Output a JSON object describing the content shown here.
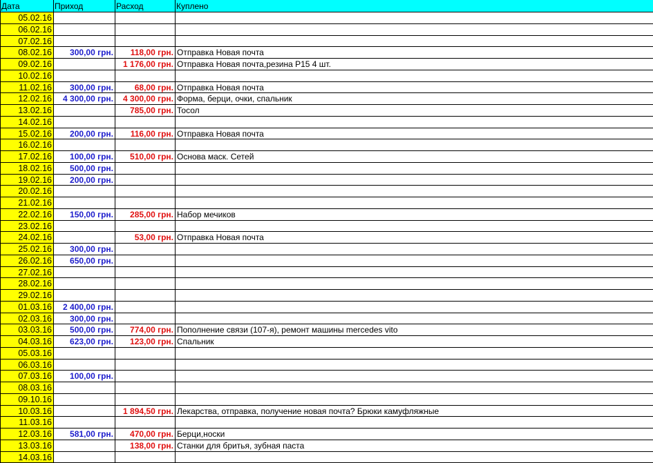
{
  "headers": [
    "Дата",
    "Приход",
    "Расход",
    "Куплено"
  ],
  "colors": {
    "header_bg": "#00ffff",
    "date_bg": "#ffff00",
    "income": "#1c1ccc",
    "expense": "#e01010"
  },
  "rows": [
    {
      "date": "05.02.16",
      "in": "",
      "out": "",
      "desc": ""
    },
    {
      "date": "06.02.16",
      "in": "",
      "out": "",
      "desc": ""
    },
    {
      "date": "07.02.16",
      "in": "",
      "out": "",
      "desc": ""
    },
    {
      "date": "08.02.16",
      "in": "300,00 грн.",
      "out": "118,00 грн.",
      "desc": "Отправка Новая почта"
    },
    {
      "date": "09.02.16",
      "in": "",
      "out": "1 176,00 грн.",
      "desc": "Отправка Новая почта,резина Р15 4 шт."
    },
    {
      "date": "10.02.16",
      "in": "",
      "out": "",
      "desc": ""
    },
    {
      "date": "11.02.16",
      "in": "300,00 грн.",
      "out": "68,00 грн.",
      "desc": "Отправка Новая почта"
    },
    {
      "date": "12.02.16",
      "in": "4 300,00 грн.",
      "out": "4 300,00 грн.",
      "desc": "Форма, берци, очки, спальник"
    },
    {
      "date": "13.02.16",
      "in": "",
      "out": "785,00 грн.",
      "desc": "Тосол"
    },
    {
      "date": "14.02.16",
      "in": "",
      "out": "",
      "desc": ""
    },
    {
      "date": "15.02.16",
      "in": "200,00 грн.",
      "out": "116,00 грн.",
      "desc": "Отправка Новая почта"
    },
    {
      "date": "16.02.16",
      "in": "",
      "out": "",
      "desc": ""
    },
    {
      "date": "17.02.16",
      "in": "100,00 грн.",
      "out": "510,00 грн.",
      "desc": "Основа маск. Сетей"
    },
    {
      "date": "18.02.16",
      "in": "500,00 грн.",
      "out": "",
      "desc": ""
    },
    {
      "date": "19.02.16",
      "in": "200,00 грн.",
      "out": "",
      "desc": ""
    },
    {
      "date": "20.02.16",
      "in": "",
      "out": "",
      "desc": ""
    },
    {
      "date": "21.02.16",
      "in": "",
      "out": "",
      "desc": ""
    },
    {
      "date": "22.02.16",
      "in": "150,00 грн.",
      "out": "285,00 грн.",
      "desc": "Набор мечиков"
    },
    {
      "date": "23.02.16",
      "in": "",
      "out": "",
      "desc": ""
    },
    {
      "date": "24.02.16",
      "in": "",
      "out": "53,00 грн.",
      "desc": "Отправка Новая почта"
    },
    {
      "date": "25.02.16",
      "in": "300,00 грн.",
      "out": "",
      "desc": ""
    },
    {
      "date": "26.02.16",
      "in": "650,00 грн.",
      "out": "",
      "desc": ""
    },
    {
      "date": "27.02.16",
      "in": "",
      "out": "",
      "desc": ""
    },
    {
      "date": "28.02.16",
      "in": "",
      "out": "",
      "desc": ""
    },
    {
      "date": "29.02.16",
      "in": "",
      "out": "",
      "desc": ""
    },
    {
      "date": "01.03.16",
      "in": "2 400,00 грн.",
      "out": "",
      "desc": ""
    },
    {
      "date": "02.03.16",
      "in": "300,00 грн.",
      "out": "",
      "desc": ""
    },
    {
      "date": "03.03.16",
      "in": "500,00 грн.",
      "out": "774,00 грн.",
      "desc": "Пополнение связи (107-я), ремонт машины mercedes vito"
    },
    {
      "date": "04.03.16",
      "in": "623,00 грн.",
      "out": "123,00 грн.",
      "desc": "Спальник"
    },
    {
      "date": "05.03.16",
      "in": "",
      "out": "",
      "desc": ""
    },
    {
      "date": "06.03.16",
      "in": "",
      "out": "",
      "desc": ""
    },
    {
      "date": "07.03.16",
      "in": "100,00 грн.",
      "out": "",
      "desc": ""
    },
    {
      "date": "08.03.16",
      "in": "",
      "out": "",
      "desc": ""
    },
    {
      "date": "09.10.16",
      "in": "",
      "out": "",
      "desc": ""
    },
    {
      "date": "10.03.16",
      "in": "",
      "out": "1 894,50 грн.",
      "desc": "Лекарства, отправка, получение новая почта? Брюки камуфляжные"
    },
    {
      "date": "11.03.16",
      "in": "",
      "out": "",
      "desc": ""
    },
    {
      "date": "12.03.16",
      "in": "581,00 грн.",
      "out": "470,00 грн.",
      "desc": "Берци,носки"
    },
    {
      "date": "13.03.16",
      "in": "",
      "out": "138,00 грн.",
      "desc": "Станки для бритья, зубная паста"
    },
    {
      "date": "14.03.16",
      "in": "",
      "out": "",
      "desc": ""
    }
  ]
}
